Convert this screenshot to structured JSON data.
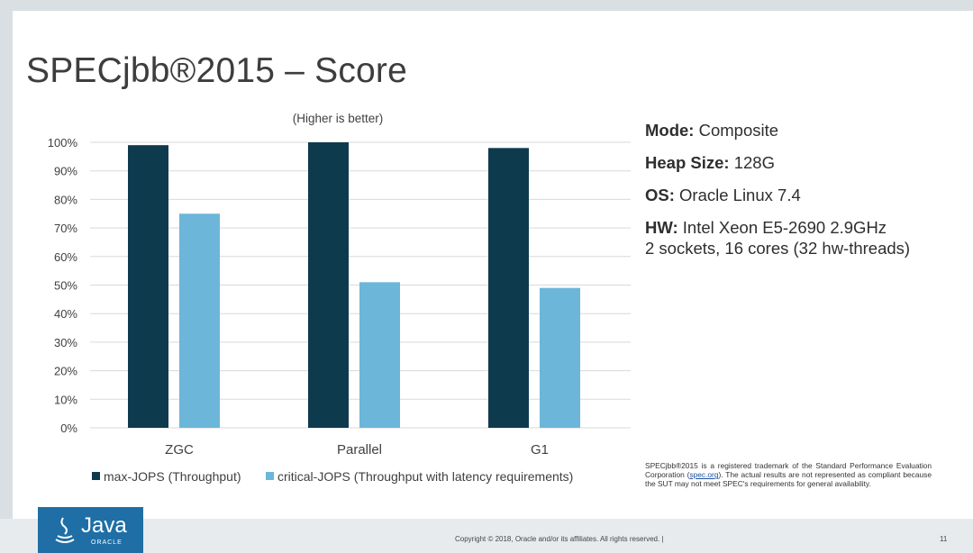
{
  "slide": {
    "title": "SPECjbb®2015 – Score",
    "info": [
      {
        "label": "Mode:",
        "value": "Composite"
      },
      {
        "label": "Heap Size:",
        "value": "128G"
      },
      {
        "label": "OS:",
        "value": "Oracle Linux 7.4"
      },
      {
        "label": "HW:",
        "value": "Intel Xeon E5-2690 2.9GHz",
        "value2": "2 sockets, 16 cores (32 hw-threads)"
      }
    ],
    "disclaimer": {
      "before": "SPECjbb®2015 is a registered trademark of the Standard Performance Evaluation Corporation (",
      "link": "spec.org",
      "after": "). The actual results are not represented as compliant because the SUT may not meet SPEC's requirements for general availability."
    },
    "footer": {
      "copyright": "Copyright © 2018, Oracle and/or its affiliates. All rights reserved.  |",
      "page_number": "11",
      "logo_text": "Java",
      "logo_subtext": "ORACLE"
    },
    "colors": {
      "series1": "#0e3a4e",
      "series2": "#6cb6d9",
      "grid": "#d9d9d9"
    },
    "icons": [
      "java-logo-icon",
      "legend-square-icon"
    ]
  },
  "chart_data": {
    "type": "bar",
    "title": "",
    "subtitle": "(Higher is better)",
    "categories": [
      "ZGC",
      "Parallel",
      "G1"
    ],
    "series": [
      {
        "name": "max-JOPS (Throughput)",
        "values": [
          99,
          100,
          98
        ]
      },
      {
        "name": "critical-JOPS (Throughput with latency requirements)",
        "values": [
          75,
          51,
          49
        ]
      }
    ],
    "ylim": [
      0,
      100
    ],
    "yticks": [
      "0%",
      "10%",
      "20%",
      "30%",
      "40%",
      "50%",
      "60%",
      "70%",
      "80%",
      "90%",
      "100%"
    ],
    "xlabel": "",
    "ylabel": "",
    "grid": true,
    "legend": "bottom"
  }
}
